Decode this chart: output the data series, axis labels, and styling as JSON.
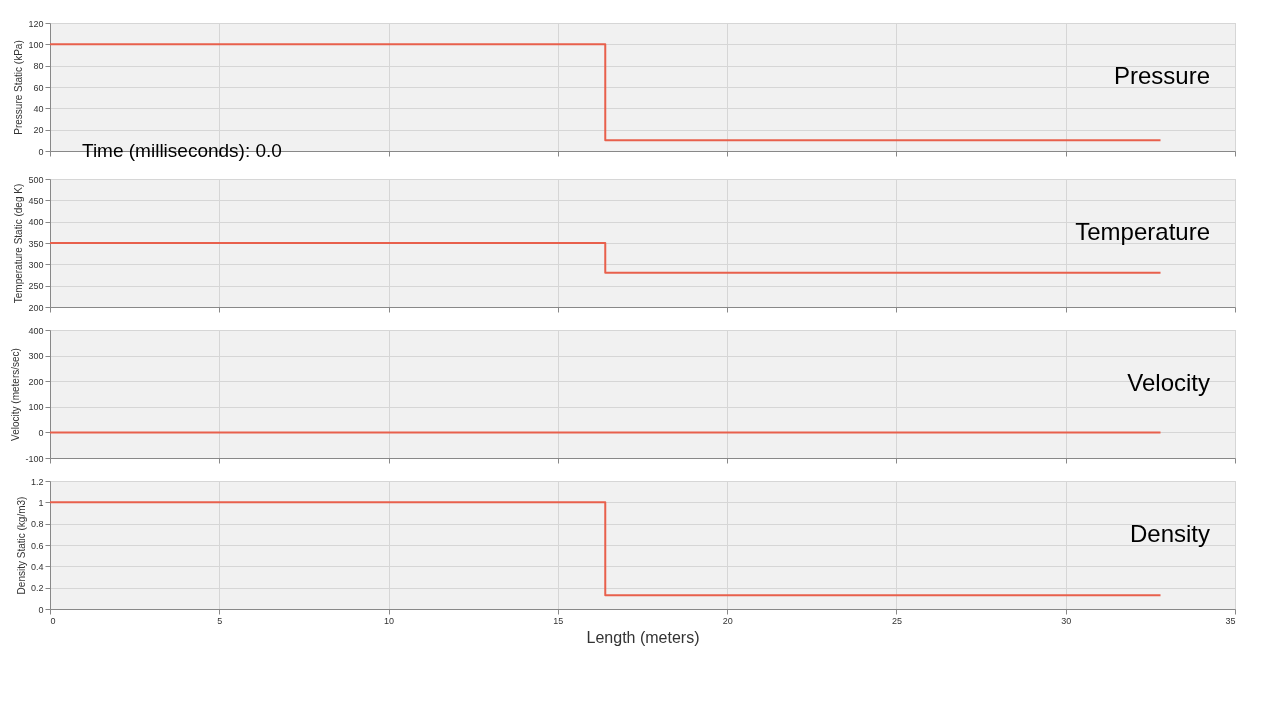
{
  "chart_data": [
    {
      "type": "step",
      "ylabel": "Pressure Static (kPa)",
      "annotations": [
        "Pressure",
        "Time (milliseconds): 0.0"
      ],
      "x": [
        0,
        16.4,
        32.8
      ],
      "series": [
        {
          "color": "#e8604c",
          "values": [
            100,
            10,
            10
          ]
        }
      ],
      "xlim": [
        0,
        35
      ],
      "xticks": [
        0,
        5,
        10,
        15,
        20,
        25,
        30,
        35
      ],
      "ylim": [
        0,
        120
      ],
      "yticks": [
        0,
        20,
        40,
        60,
        80,
        100,
        120
      ],
      "grid": true,
      "tick_labels": "y"
    },
    {
      "type": "step",
      "ylabel": "Temperature Static (deg K)",
      "annotations": [
        "Temperature"
      ],
      "x": [
        0,
        16.4,
        32.8
      ],
      "series": [
        {
          "color": "#e8604c",
          "values": [
            350,
            280,
            280
          ]
        }
      ],
      "xlim": [
        0,
        35
      ],
      "xticks": [
        0,
        5,
        10,
        15,
        20,
        25,
        30,
        35
      ],
      "ylim": [
        200,
        500
      ],
      "yticks": [
        200,
        250,
        300,
        350,
        400,
        450,
        500
      ],
      "grid": true,
      "tick_labels": "y"
    },
    {
      "type": "step",
      "ylabel": "Velocity (meters/sec)",
      "annotations": [
        "Velocity"
      ],
      "x": [
        0,
        16.4,
        32.8
      ],
      "series": [
        {
          "color": "#e8604c",
          "values": [
            0,
            0,
            0
          ]
        }
      ],
      "xlim": [
        0,
        35
      ],
      "xticks": [
        0,
        5,
        10,
        15,
        20,
        25,
        30,
        35
      ],
      "ylim": [
        -100,
        400
      ],
      "yticks": [
        -100,
        0,
        100,
        200,
        300,
        400
      ],
      "grid": true,
      "tick_labels": "y"
    },
    {
      "type": "step",
      "xlabel": "Length (meters)",
      "ylabel": "Density Static (kg/m3)",
      "annotations": [
        "Density"
      ],
      "x": [
        0,
        16.4,
        32.8
      ],
      "series": [
        {
          "color": "#e8604c",
          "values": [
            1,
            0.13,
            0.13
          ]
        }
      ],
      "xlim": [
        0,
        35
      ],
      "xticks": [
        0,
        5,
        10,
        15,
        20,
        25,
        30,
        35
      ],
      "ylim": [
        0,
        1.2
      ],
      "yticks": [
        0,
        0.2,
        0.4,
        0.6,
        0.8,
        1,
        1.2
      ],
      "grid": true
    }
  ]
}
